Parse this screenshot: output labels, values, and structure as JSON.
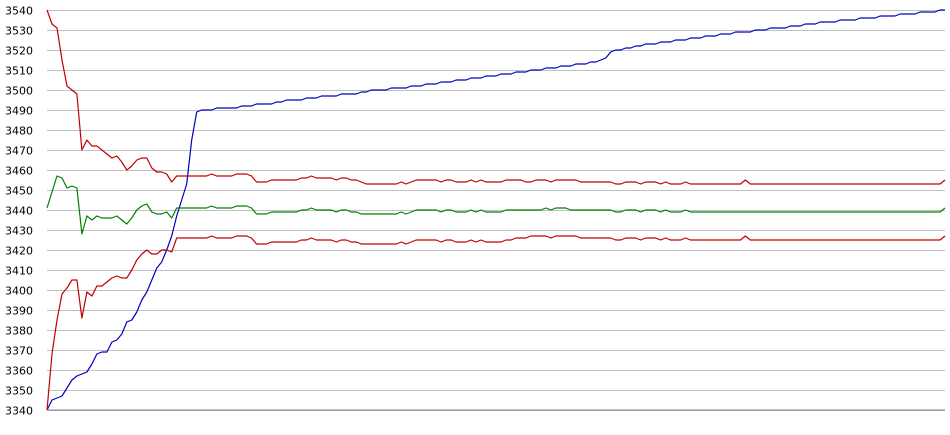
{
  "chart_data": {
    "type": "line",
    "title": "",
    "xlabel": "",
    "ylabel": "",
    "grid": true,
    "ylim": [
      3340,
      3540
    ],
    "y_ticks": [
      "3540",
      "3530",
      "3520",
      "3510",
      "3500",
      "3490",
      "3480",
      "3470",
      "3460",
      "3450",
      "3440",
      "3430",
      "3420",
      "3410",
      "3400",
      "3390",
      "3380",
      "3370",
      "3360",
      "3350",
      "3340"
    ],
    "x": [
      0,
      1,
      2,
      3,
      4,
      5,
      6,
      7,
      8,
      9,
      10,
      11,
      12,
      13,
      14,
      15,
      16,
      17,
      18,
      19,
      20,
      21,
      22,
      23,
      24,
      25,
      26,
      27,
      28,
      29,
      30,
      31,
      32,
      33,
      34,
      35,
      36,
      37,
      38,
      39,
      40,
      41,
      42,
      43,
      44,
      45,
      46,
      47,
      48,
      49,
      50,
      51,
      52,
      53,
      54,
      55,
      56,
      57,
      58,
      59,
      60,
      61,
      62,
      63,
      64,
      65,
      66,
      67,
      68,
      69,
      70,
      71,
      72,
      73,
      74,
      75,
      76,
      77,
      78,
      79,
      80,
      81,
      82,
      83,
      84,
      85,
      86,
      87,
      88,
      89,
      90,
      91,
      92,
      93,
      94,
      95,
      96,
      97,
      98,
      99,
      100,
      101,
      102,
      103,
      104,
      105,
      106,
      107,
      108,
      109,
      110,
      111,
      112,
      113,
      114,
      115,
      116,
      117,
      118,
      119,
      120,
      121,
      122,
      123,
      124,
      125,
      126,
      127,
      128,
      129,
      130,
      131,
      132,
      133,
      134,
      135,
      136,
      137,
      138,
      139,
      140,
      141,
      142,
      143,
      144,
      145,
      146,
      147,
      148,
      149,
      150,
      151,
      152,
      153,
      154,
      155,
      156,
      157,
      158,
      159,
      160,
      161,
      162,
      163,
      164,
      165,
      166,
      167,
      168,
      169,
      170,
      171,
      172,
      173,
      174,
      175,
      176,
      177,
      178,
      179,
      180
    ],
    "series": [
      {
        "color": "#0000c0",
        "values": [
          3340,
          3345,
          3346,
          3347,
          3351,
          3355,
          3357,
          3358,
          3359,
          3363,
          3368,
          3369,
          3369,
          3374,
          3375,
          3378,
          3384,
          3385,
          3389,
          3395,
          3399,
          3405,
          3411,
          3414,
          3420,
          3427,
          3437,
          3445,
          3453,
          3475,
          3489,
          3490,
          3490,
          3490,
          3491,
          3491,
          3491,
          3491,
          3491,
          3492,
          3492,
          3492,
          3493,
          3493,
          3493,
          3493,
          3494,
          3494,
          3495,
          3495,
          3495,
          3495,
          3496,
          3496,
          3496,
          3497,
          3497,
          3497,
          3497,
          3498,
          3498,
          3498,
          3498,
          3499,
          3499,
          3500,
          3500,
          3500,
          3500,
          3501,
          3501,
          3501,
          3501,
          3502,
          3502,
          3502,
          3503,
          3503,
          3503,
          3504,
          3504,
          3504,
          3505,
          3505,
          3505,
          3506,
          3506,
          3506,
          3507,
          3507,
          3507,
          3508,
          3508,
          3508,
          3509,
          3509,
          3509,
          3510,
          3510,
          3510,
          3511,
          3511,
          3511,
          3512,
          3512,
          3512,
          3513,
          3513,
          3513,
          3514,
          3514,
          3515,
          3516,
          3519,
          3520,
          3520,
          3521,
          3521,
          3522,
          3522,
          3523,
          3523,
          3523,
          3524,
          3524,
          3524,
          3525,
          3525,
          3525,
          3526,
          3526,
          3526,
          3527,
          3527,
          3527,
          3528,
          3528,
          3528,
          3529,
          3529,
          3529,
          3529,
          3530,
          3530,
          3530,
          3531,
          3531,
          3531,
          3531,
          3532,
          3532,
          3532,
          3533,
          3533,
          3533,
          3534,
          3534,
          3534,
          3534,
          3535,
          3535,
          3535,
          3535,
          3536,
          3536,
          3536,
          3536,
          3537,
          3537,
          3537,
          3537,
          3538,
          3538,
          3538,
          3538,
          3539,
          3539,
          3539,
          3539,
          3540,
          3540
        ]
      },
      {
        "color": "#c00000",
        "values": [
          3540,
          3533,
          3531,
          3515,
          3502,
          3500,
          3498,
          3470,
          3475,
          3472,
          3472,
          3470,
          3468,
          3466,
          3467,
          3464,
          3460,
          3462,
          3465,
          3466,
          3466,
          3461,
          3459,
          3459,
          3458,
          3454,
          3457,
          3457,
          3457,
          3457,
          3457,
          3457,
          3457,
          3458,
          3457,
          3457,
          3457,
          3457,
          3458,
          3458,
          3458,
          3457,
          3454,
          3454,
          3454,
          3455,
          3455,
          3455,
          3455,
          3455,
          3455,
          3456,
          3456,
          3457,
          3456,
          3456,
          3456,
          3456,
          3455,
          3456,
          3456,
          3455,
          3455,
          3454,
          3453,
          3453,
          3453,
          3453,
          3453,
          3453,
          3453,
          3454,
          3453,
          3454,
          3455,
          3455,
          3455,
          3455,
          3455,
          3454,
          3455,
          3455,
          3454,
          3454,
          3454,
          3455,
          3454,
          3455,
          3454,
          3454,
          3454,
          3454,
          3455,
          3455,
          3455,
          3455,
          3454,
          3454,
          3455,
          3455,
          3455,
          3454,
          3455,
          3455,
          3455,
          3455,
          3455,
          3454,
          3454,
          3454,
          3454,
          3454,
          3454,
          3454,
          3453,
          3453,
          3454,
          3454,
          3454,
          3453,
          3454,
          3454,
          3454,
          3453,
          3454,
          3453,
          3453,
          3453,
          3454,
          3453,
          3453,
          3453,
          3453,
          3453,
          3453,
          3453,
          3453,
          3453,
          3453,
          3453,
          3455,
          3453,
          3453,
          3453,
          3453,
          3453,
          3453,
          3453,
          3453,
          3453,
          3453,
          3453,
          3453,
          3453,
          3453,
          3453,
          3453,
          3453,
          3453,
          3453,
          3453,
          3453,
          3453,
          3453,
          3453,
          3453,
          3453,
          3453,
          3453,
          3453,
          3453,
          3453,
          3453,
          3453,
          3453,
          3453,
          3453,
          3453,
          3453,
          3453,
          3455
        ]
      },
      {
        "color": "#008000",
        "values": [
          3441,
          3449,
          3457,
          3456,
          3451,
          3452,
          3451,
          3428,
          3437,
          3435,
          3437,
          3436,
          3436,
          3436,
          3437,
          3435,
          3433,
          3436,
          3440,
          3442,
          3443,
          3439,
          3438,
          3438,
          3439,
          3436,
          3441,
          3441,
          3441,
          3441,
          3441,
          3441,
          3441,
          3442,
          3441,
          3441,
          3441,
          3441,
          3442,
          3442,
          3442,
          3441,
          3438,
          3438,
          3438,
          3439,
          3439,
          3439,
          3439,
          3439,
          3439,
          3440,
          3440,
          3441,
          3440,
          3440,
          3440,
          3440,
          3439,
          3440,
          3440,
          3439,
          3439,
          3438,
          3438,
          3438,
          3438,
          3438,
          3438,
          3438,
          3438,
          3439,
          3438,
          3439,
          3440,
          3440,
          3440,
          3440,
          3440,
          3439,
          3440,
          3440,
          3439,
          3439,
          3439,
          3440,
          3439,
          3440,
          3439,
          3439,
          3439,
          3439,
          3440,
          3440,
          3440,
          3440,
          3440,
          3440,
          3440,
          3440,
          3441,
          3440,
          3441,
          3441,
          3441,
          3440,
          3440,
          3440,
          3440,
          3440,
          3440,
          3440,
          3440,
          3440,
          3439,
          3439,
          3440,
          3440,
          3440,
          3439,
          3440,
          3440,
          3440,
          3439,
          3440,
          3439,
          3439,
          3439,
          3440,
          3439,
          3439,
          3439,
          3439,
          3439,
          3439,
          3439,
          3439,
          3439,
          3439,
          3439,
          3439,
          3439,
          3439,
          3439,
          3439,
          3439,
          3439,
          3439,
          3439,
          3439,
          3439,
          3439,
          3439,
          3439,
          3439,
          3439,
          3439,
          3439,
          3439,
          3439,
          3439,
          3439,
          3439,
          3439,
          3439,
          3439,
          3439,
          3439,
          3439,
          3439,
          3439,
          3439,
          3439,
          3439,
          3439,
          3439,
          3439,
          3439,
          3439,
          3439,
          3441
        ]
      },
      {
        "color": "#c00000",
        "values": [
          3340,
          3368,
          3385,
          3398,
          3401,
          3405,
          3405,
          3386,
          3399,
          3397,
          3402,
          3402,
          3404,
          3406,
          3407,
          3406,
          3406,
          3410,
          3415,
          3418,
          3420,
          3418,
          3418,
          3420,
          3420,
          3419,
          3426,
          3426,
          3426,
          3426,
          3426,
          3426,
          3426,
          3427,
          3426,
          3426,
          3426,
          3426,
          3427,
          3427,
          3427,
          3426,
          3423,
          3423,
          3423,
          3424,
          3424,
          3424,
          3424,
          3424,
          3424,
          3425,
          3425,
          3426,
          3425,
          3425,
          3425,
          3425,
          3424,
          3425,
          3425,
          3424,
          3424,
          3423,
          3423,
          3423,
          3423,
          3423,
          3423,
          3423,
          3423,
          3424,
          3423,
          3424,
          3425,
          3425,
          3425,
          3425,
          3425,
          3424,
          3425,
          3425,
          3424,
          3424,
          3424,
          3425,
          3424,
          3425,
          3424,
          3424,
          3424,
          3424,
          3425,
          3425,
          3426,
          3426,
          3426,
          3427,
          3427,
          3427,
          3427,
          3426,
          3427,
          3427,
          3427,
          3427,
          3427,
          3426,
          3426,
          3426,
          3426,
          3426,
          3426,
          3426,
          3425,
          3425,
          3426,
          3426,
          3426,
          3425,
          3426,
          3426,
          3426,
          3425,
          3426,
          3425,
          3425,
          3425,
          3426,
          3425,
          3425,
          3425,
          3425,
          3425,
          3425,
          3425,
          3425,
          3425,
          3425,
          3425,
          3427,
          3425,
          3425,
          3425,
          3425,
          3425,
          3425,
          3425,
          3425,
          3425,
          3425,
          3425,
          3425,
          3425,
          3425,
          3425,
          3425,
          3425,
          3425,
          3425,
          3425,
          3425,
          3425,
          3425,
          3425,
          3425,
          3425,
          3425,
          3425,
          3425,
          3425,
          3425,
          3425,
          3425,
          3425,
          3425,
          3425,
          3425,
          3425,
          3425,
          3427
        ]
      }
    ]
  }
}
